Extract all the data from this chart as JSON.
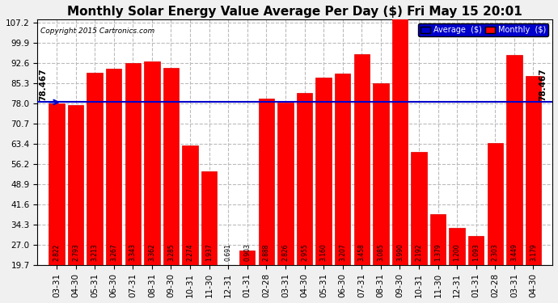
{
  "title": "Monthly Solar Energy Value Average Per Day ($) Fri May 15 20:01",
  "copyright": "Copyright 2015 Cartronics.com",
  "categories": [
    "03-31",
    "04-30",
    "05-31",
    "06-30",
    "07-31",
    "08-31",
    "09-30",
    "10-31",
    "11-30",
    "12-31",
    "01-31",
    "02-28",
    "03-31",
    "04-30",
    "05-31",
    "06-30",
    "07-31",
    "08-31",
    "09-30",
    "10-31",
    "11-30",
    "12-31",
    "01-31",
    "02-28",
    "03-31",
    "04-30"
  ],
  "bar_labels": [
    "2.822",
    "2.793",
    "3.213",
    "3.267",
    "3.343",
    "3.362",
    "3.285",
    "2.274",
    "1.937",
    "0.691",
    "0.903",
    "2.888",
    "2.826",
    "2.955",
    "3.160",
    "3.207",
    "3.458",
    "3.085",
    "3.990",
    "2.192",
    "1.379",
    "1.200",
    "1.093",
    "2.303",
    "3.449",
    "3.179"
  ],
  "dollar_values": [
    78.07,
    77.36,
    88.96,
    90.49,
    92.6,
    93.13,
    90.99,
    62.98,
    53.65,
    19.14,
    25.01,
    79.9,
    78.24,
    81.81,
    87.48,
    88.83,
    95.76,
    85.45,
    110.5,
    60.68,
    38.19,
    33.22,
    30.27,
    63.79,
    95.48,
    88.03
  ],
  "bar_color": "#ff0000",
  "bar_edge_color": "#dd0000",
  "average_value": 78.467,
  "average_line_color": "#0000cc",
  "ylim_min": 19.7,
  "ylim_max": 107.2,
  "yticks": [
    19.7,
    27.0,
    34.3,
    41.6,
    48.9,
    56.2,
    63.4,
    70.7,
    78.0,
    85.3,
    92.6,
    99.9,
    107.2
  ],
  "background_color": "#f0f0f0",
  "plot_bg_color": "#ffffff",
  "grid_color": "#bbbbbb",
  "title_fontsize": 11,
  "tick_fontsize": 7.5,
  "bar_label_fontsize": 5.5,
  "average_label": "78.467"
}
